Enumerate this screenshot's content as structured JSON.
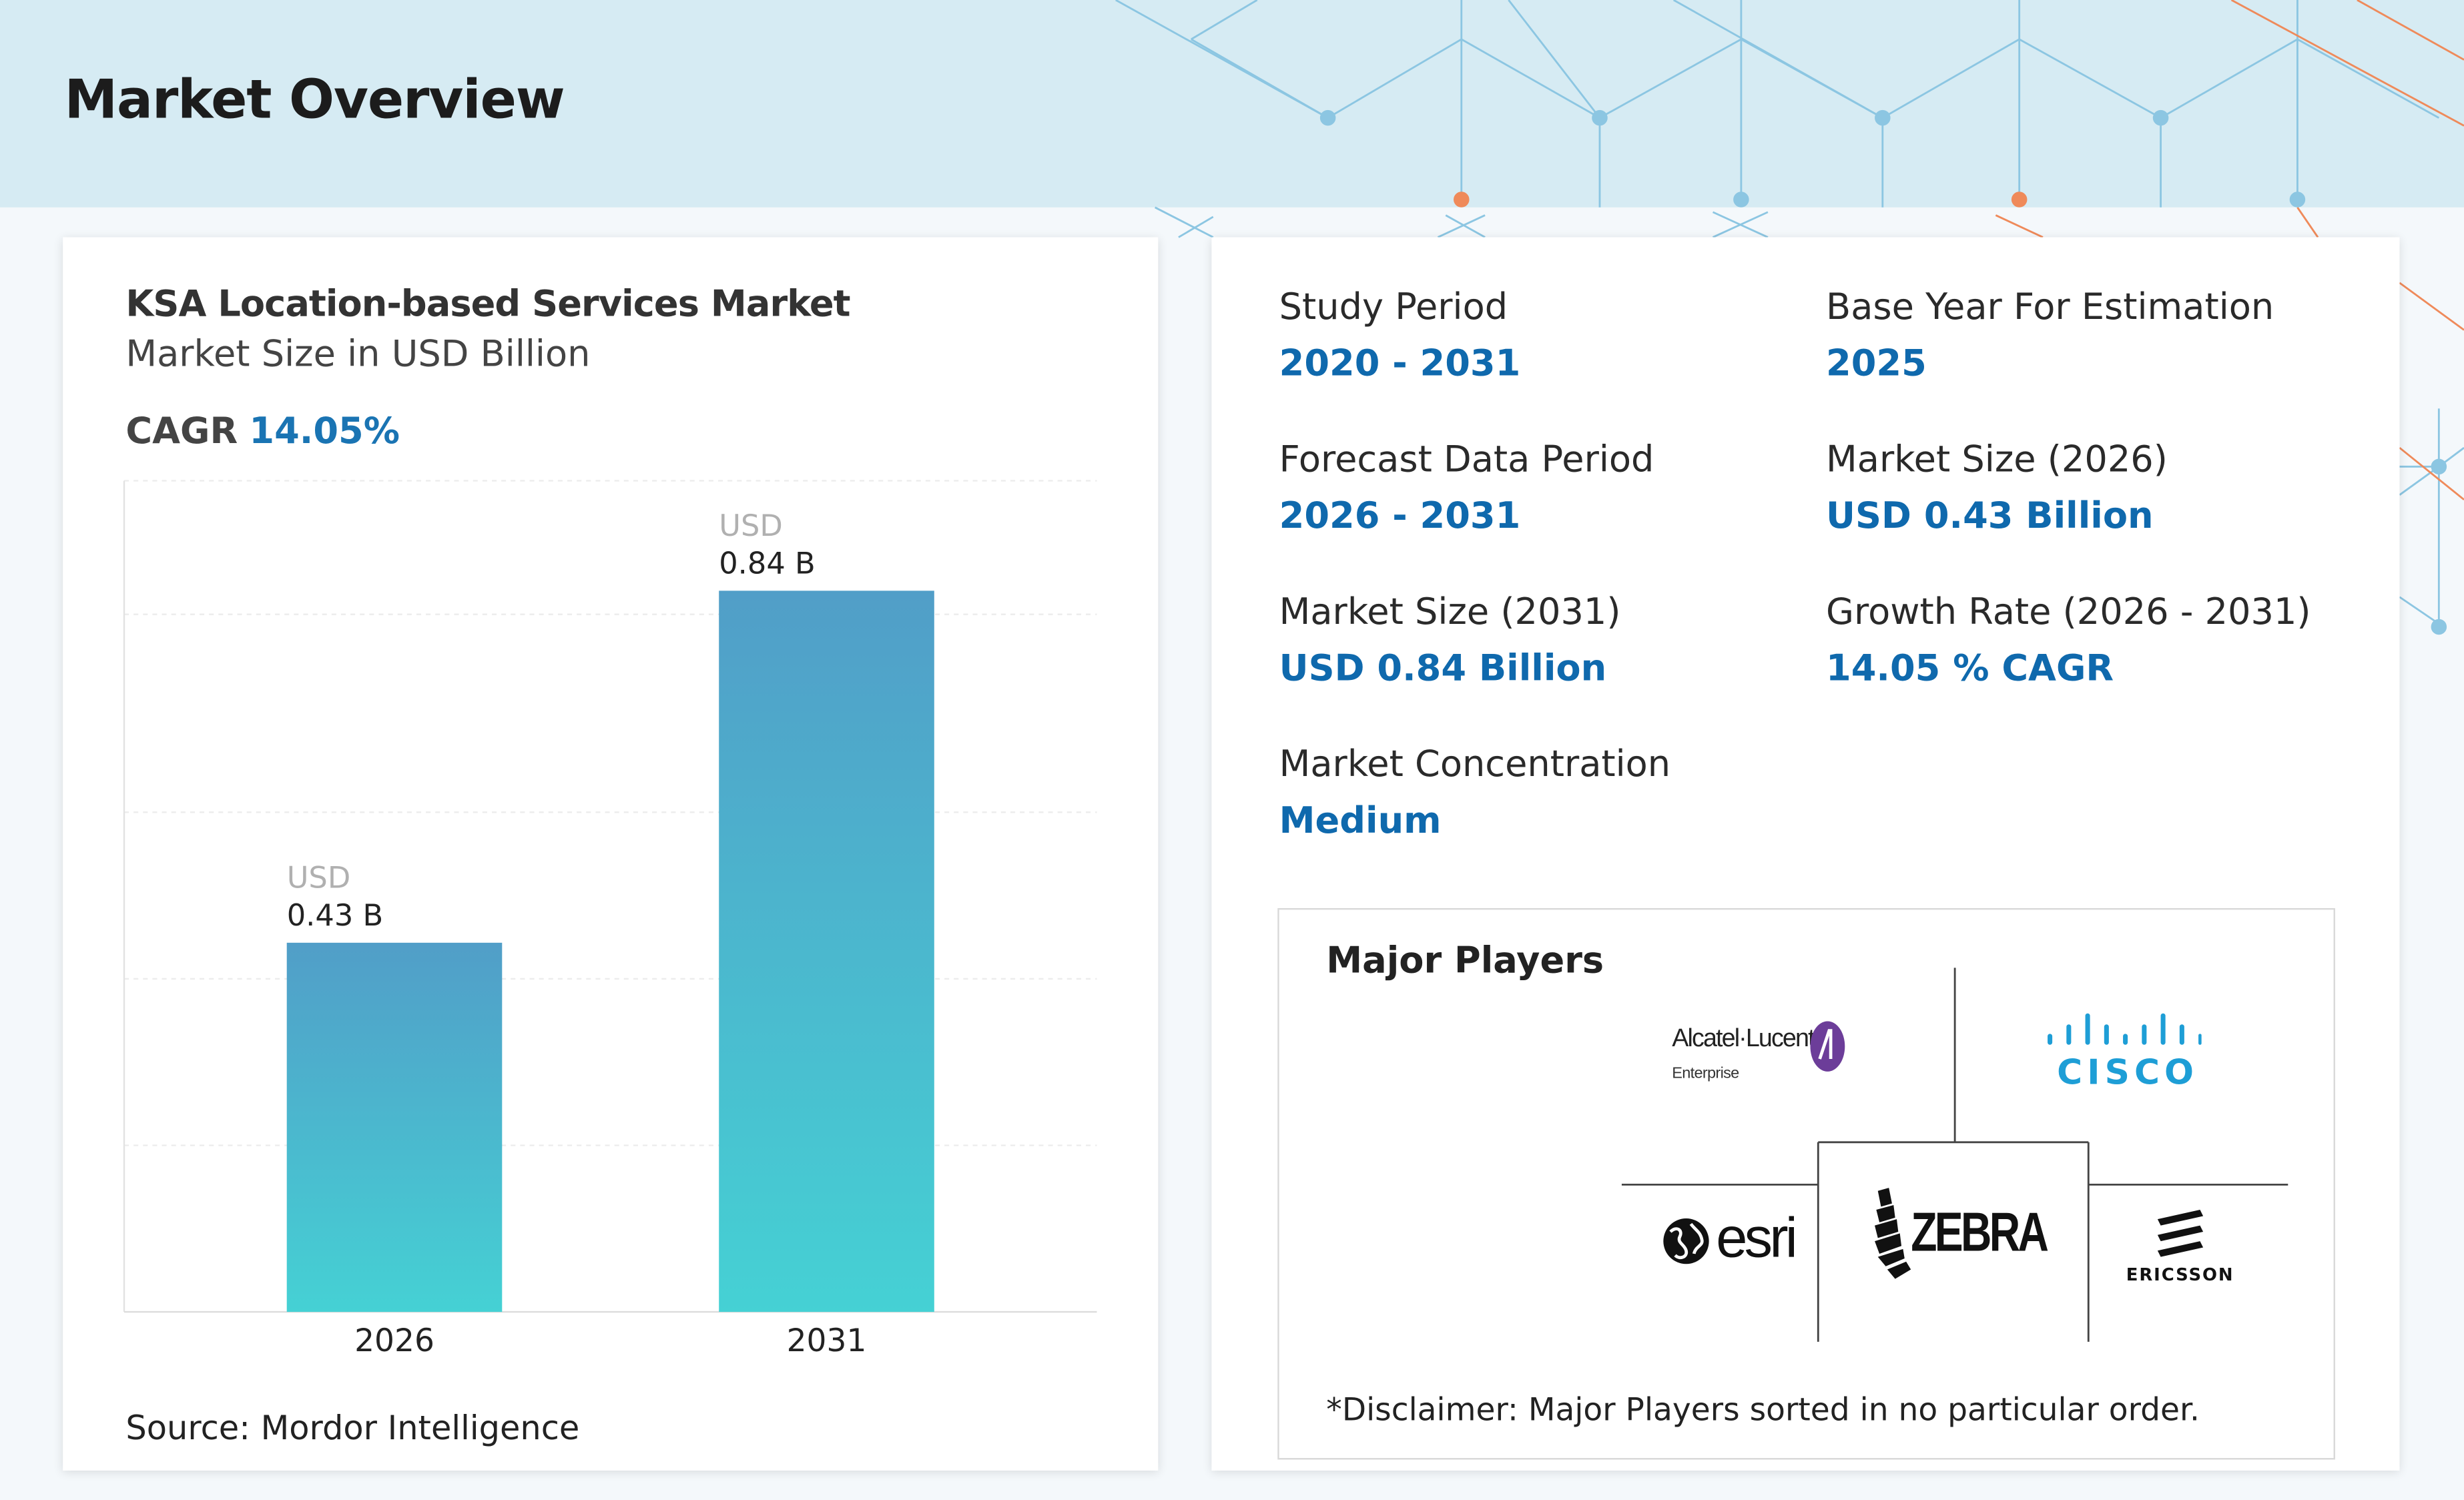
{
  "header": {
    "title": "Market Overview"
  },
  "chart_card": {
    "title": "KSA Location-based Services Market",
    "subtitle": "Market Size in USD Billion",
    "cagr_label": "CAGR",
    "cagr_value": "14.05%",
    "source": "Source: Mordor Intelligence"
  },
  "chart_data": {
    "type": "bar",
    "categories": [
      "2026",
      "2031"
    ],
    "values": [
      0.43,
      0.84
    ],
    "value_labels": [
      {
        "prefix": "USD",
        "text": "0.43 B"
      },
      {
        "prefix": "USD",
        "text": "0.84 B"
      }
    ],
    "ylim": [
      0,
      1.0
    ],
    "grid": true,
    "colors": {
      "bar_top": "#519ec8",
      "bar_bottom": "#45d1d4"
    }
  },
  "stats": [
    {
      "label": "Study Period",
      "value": "2020 - 2031"
    },
    {
      "label": "Base Year For Estimation",
      "value": "2025"
    },
    {
      "label": "Forecast Data Period",
      "value": "2026 - 2031"
    },
    {
      "label": "Market Size (2026)",
      "value": "USD 0.43 Billion"
    },
    {
      "label": "Market Size (2031)",
      "value": "USD 0.84 Billion"
    },
    {
      "label": "Growth Rate (2026 - 2031)",
      "value": "14.05 % CAGR"
    },
    {
      "label": "Market Concentration",
      "value": "Medium"
    }
  ],
  "players": {
    "title": "Major Players",
    "logos": [
      {
        "name": "alcatel-lucent-enterprise",
        "text": "Alcatel·Lucent",
        "subtext": "Enterprise"
      },
      {
        "name": "cisco",
        "text": "CISCO"
      },
      {
        "name": "esri",
        "text": "esri"
      },
      {
        "name": "zebra",
        "text": "ZEBRA"
      },
      {
        "name": "ericsson",
        "text": "ERICSSON"
      }
    ],
    "disclaimer": "*Disclaimer: Major Players sorted in no particular order."
  },
  "colors": {
    "accent": "#0f69ad",
    "header_bg": "#d6ebf3",
    "net_blue": "#8cc6e2",
    "net_orange": "#ef8a5a"
  }
}
